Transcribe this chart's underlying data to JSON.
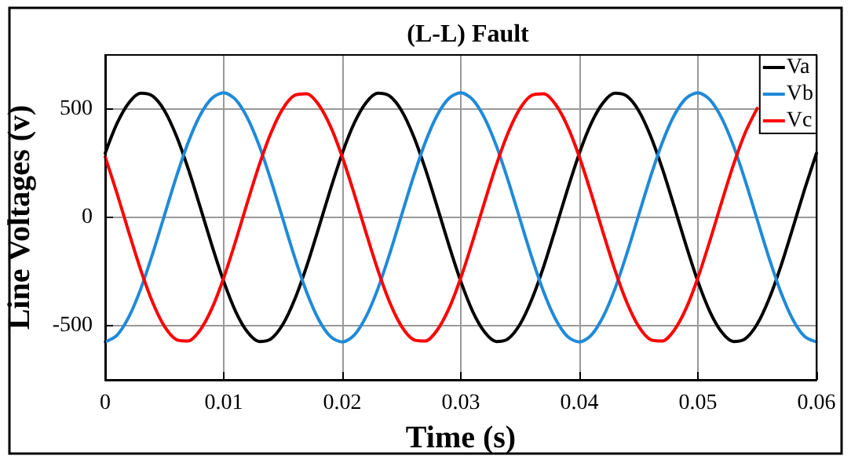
{
  "chart_data": {
    "type": "line",
    "title": "(L-L) Fault",
    "xlabel": "Time (s)",
    "ylabel": "Line Voltages (v)",
    "x": [
      0,
      0.001,
      0.002,
      0.003,
      0.004,
      0.005,
      0.006,
      0.007,
      0.008,
      0.009,
      0.01,
      0.011,
      0.012,
      0.013,
      0.014,
      0.015,
      0.016,
      0.017,
      0.018,
      0.019,
      0.02,
      0.021,
      0.022,
      0.023,
      0.024,
      0.025,
      0.026,
      0.027,
      0.028,
      0.029,
      0.03,
      0.031,
      0.032,
      0.033,
      0.034,
      0.035,
      0.036,
      0.037,
      0.038,
      0.039,
      0.04,
      0.041,
      0.042,
      0.043,
      0.044,
      0.045,
      0.046,
      0.047,
      0.048,
      0.049,
      0.05,
      0.051,
      0.052,
      0.053,
      0.054,
      0.055,
      0.056,
      0.057,
      0.058,
      0.059,
      0.06
    ],
    "series": [
      {
        "name": "Va",
        "color": "#000000",
        "values": [
          296,
          434,
          529,
          573,
          560,
          493,
          377,
          225,
          50,
          -129,
          -296,
          -434,
          -529,
          -573,
          -560,
          -493,
          -377,
          -225,
          -50,
          129,
          296,
          434,
          529,
          573,
          560,
          493,
          377,
          225,
          50,
          -129,
          -296,
          -434,
          -529,
          -573,
          -560,
          -493,
          -377,
          -225,
          -50,
          129,
          296,
          434,
          529,
          573,
          560,
          493,
          377,
          225,
          50,
          -129,
          -296,
          -434,
          -529,
          -573,
          -560,
          -493,
          -377,
          -225,
          -50,
          129,
          296
        ]
      },
      {
        "name": "Vb",
        "color": "#1f8ad9",
        "values": [
          -575,
          -544,
          -459,
          -330,
          -168,
          10,
          187,
          346,
          471,
          550,
          575,
          544,
          459,
          330,
          168,
          -10,
          -187,
          -346,
          -471,
          -550,
          -575,
          -544,
          -459,
          -330,
          -168,
          10,
          187,
          346,
          471,
          550,
          575,
          544,
          459,
          330,
          168,
          -10,
          -187,
          -346,
          -471,
          -550,
          -575,
          -544,
          -459,
          -330,
          -168,
          10,
          187,
          346,
          471,
          550,
          575,
          544,
          459,
          330,
          168,
          -10,
          -187,
          -346,
          -471,
          -550,
          -575
        ]
      },
      {
        "name": "Vc",
        "color": "#ff0000",
        "values": [
          279,
          110,
          -70,
          -243,
          -392,
          -503,
          -564,
          -571,
          -521,
          -421,
          -279,
          -110,
          70,
          243,
          392,
          503,
          564,
          571,
          521,
          421,
          279,
          110,
          -70,
          -243,
          -392,
          -503,
          -564,
          -571,
          -521,
          -421,
          -279,
          -110,
          70,
          243,
          392,
          503,
          564,
          571,
          521,
          421,
          279,
          110,
          -70,
          -243,
          -392,
          -503,
          -564,
          -571,
          -521,
          -421,
          -279,
          -110,
          70,
          243,
          392,
          503,
          null,
          null,
          null,
          null,
          null
        ]
      }
    ],
    "xlim": [
      0,
      0.06
    ],
    "xticks": [
      0,
      0.01,
      0.02,
      0.03,
      0.04,
      0.05,
      0.06
    ],
    "ylim": [
      -750,
      750
    ],
    "yticks": [
      -500,
      0,
      500
    ],
    "grid": true,
    "legend": "top right",
    "marker": "none",
    "line_style": "solid"
  }
}
